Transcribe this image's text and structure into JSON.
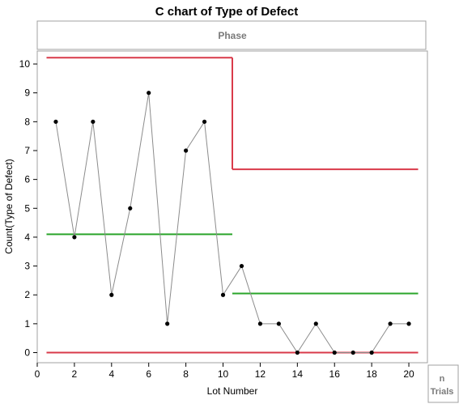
{
  "chart_data": {
    "type": "line",
    "title": "C chart of Type of Defect",
    "phase_header": "Phase",
    "xlabel": "Lot Number",
    "ylabel": "Count(Type of Defect)",
    "corner_label_top": "n",
    "corner_label_bottom": "Trials",
    "xlim": [
      0,
      21
    ],
    "ylim": [
      -0.35,
      10.45
    ],
    "x_ticks": [
      0,
      2,
      4,
      6,
      8,
      10,
      12,
      14,
      16,
      18,
      20
    ],
    "y_ticks": [
      0,
      1,
      2,
      3,
      4,
      5,
      6,
      7,
      8,
      9,
      10
    ],
    "series": [
      {
        "x": [
          1,
          2,
          3,
          4,
          5,
          6,
          7,
          8,
          9,
          10,
          11,
          12,
          13,
          14,
          15,
          16,
          17,
          18,
          19,
          20
        ],
        "values": [
          8,
          4,
          8,
          2,
          5,
          9,
          1,
          7,
          8,
          2,
          3,
          1,
          1,
          0,
          1,
          0,
          0,
          0,
          1,
          1
        ]
      }
    ],
    "phases": [
      {
        "x_start": 0.5,
        "x_end": 10.5,
        "ucl": 10.22,
        "center": 4.1,
        "lcl": 0
      },
      {
        "x_start": 10.5,
        "x_end": 20.5,
        "ucl": 6.35,
        "center": 2.05,
        "lcl": 0
      }
    ],
    "colors": {
      "limit_line": "#d93a4a",
      "center_line": "#2aa52a",
      "series_line": "#8c8c8c",
      "point": "#000000",
      "frame": "#a0a0a0"
    }
  }
}
